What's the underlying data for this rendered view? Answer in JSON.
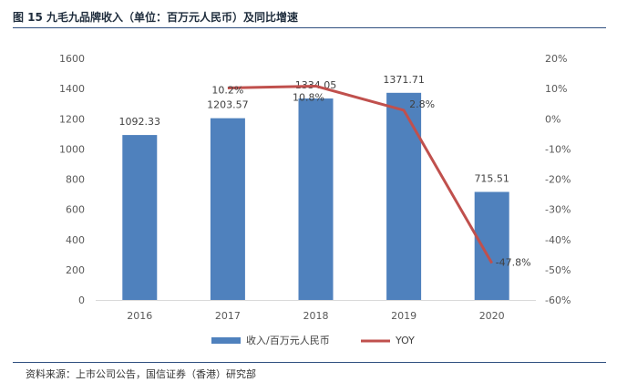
{
  "figure": {
    "title": "图 15   九毛九品牌收入（单位：百万元人民币）及同比增速",
    "source": "资料来源：上市公司公告，国信证券（香港）研究部"
  },
  "colors": {
    "bar": "#4F81BD",
    "line": "#C0504D",
    "rule": "#2F4F7F"
  },
  "chart_data": {
    "type": "bar",
    "title": "九毛九品牌收入（单位：百万元人民币）及同比增速",
    "categories": [
      "2016",
      "2017",
      "2018",
      "2019",
      "2020"
    ],
    "series": [
      {
        "name": "收入/百万元人民币",
        "type": "bar",
        "axis": "left",
        "values": [
          1092.33,
          1203.57,
          1334.05,
          1371.71,
          715.51
        ],
        "labels": [
          "1092.33",
          "1203.57",
          "1334.05",
          "1371.71",
          "715.51"
        ]
      },
      {
        "name": "YOY",
        "type": "line",
        "axis": "right",
        "x": [
          "2017",
          "2018",
          "2019",
          "2020"
        ],
        "values": [
          10.2,
          10.8,
          2.8,
          -47.8
        ],
        "labels": [
          "10.2%",
          "10.8%",
          "2.8%",
          "-47.8%"
        ]
      }
    ],
    "ylim": [
      0,
      1600
    ],
    "yticks": [
      "0",
      "200",
      "400",
      "600",
      "800",
      "1000",
      "1200",
      "1400",
      "1600"
    ],
    "y2lim": [
      -60,
      20
    ],
    "y2ticks": [
      "-60%",
      "-50%",
      "-40%",
      "-30%",
      "-20%",
      "-10%",
      "0%",
      "10%",
      "20%"
    ],
    "grid": false,
    "legend": "bottom"
  }
}
